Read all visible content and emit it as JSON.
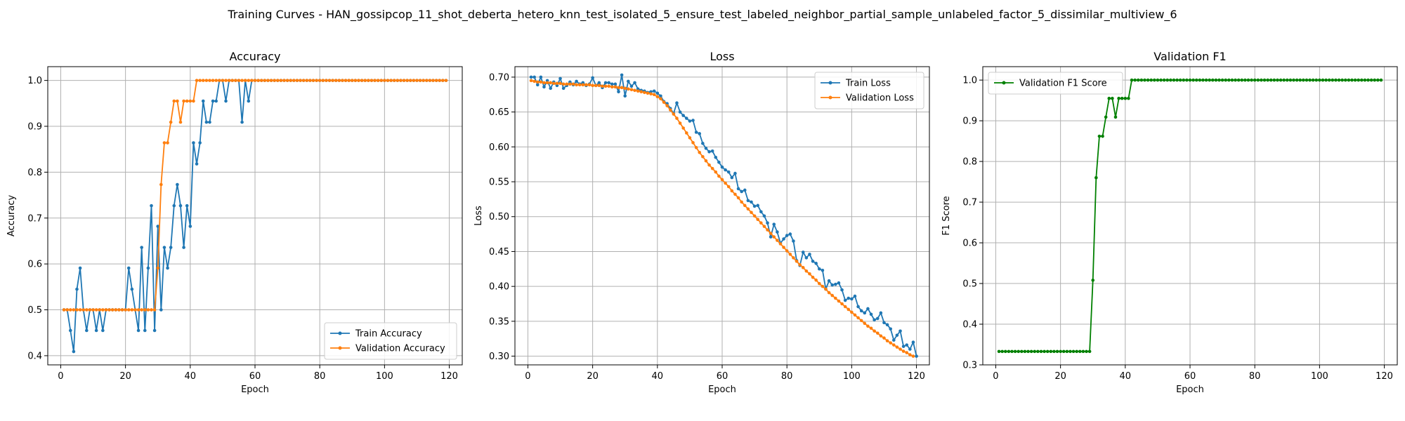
{
  "suptitle": "Training Curves - HAN_gossipcop_11_shot_deberta_hetero_knn_test_isolated_5_ensure_test_labeled_neighbor_partial_sample_unlabeled_factor_5_dissimilar_multiview_6",
  "colors": {
    "train": "#1f77b4",
    "val": "#ff7f0e",
    "f1": "#008000",
    "grid": "#b0b0b0"
  },
  "chart_data": [
    {
      "type": "line",
      "title": "Accuracy",
      "xlabel": "Epoch",
      "ylabel": "Accuracy",
      "xlim": [
        -4,
        124
      ],
      "ylim": [
        0.38,
        1.03
      ],
      "xticks": [
        0,
        20,
        40,
        60,
        80,
        100,
        120
      ],
      "yticks": [
        0.4,
        0.5,
        0.6,
        0.7,
        0.8,
        0.9,
        1.0
      ],
      "ytick_labels": [
        "0.4",
        "0.5",
        "0.6",
        "0.7",
        "0.8",
        "0.9",
        "1.0"
      ],
      "grid": true,
      "legend": "lower-right",
      "x_start": 1,
      "series": [
        {
          "name": "Train Accuracy",
          "color": "#1f77b4",
          "values": [
            0.5,
            0.5,
            0.455,
            0.409,
            0.545,
            0.591,
            0.5,
            0.455,
            0.5,
            0.5,
            0.455,
            0.5,
            0.455,
            0.5,
            0.5,
            0.5,
            0.5,
            0.5,
            0.5,
            0.5,
            0.591,
            0.545,
            0.5,
            0.455,
            0.636,
            0.455,
            0.591,
            0.727,
            0.455,
            0.682,
            0.5,
            0.636,
            0.591,
            0.636,
            0.727,
            0.773,
            0.727,
            0.636,
            0.727,
            0.682,
            0.864,
            0.818,
            0.864,
            0.955,
            0.909,
            0.909,
            0.955,
            0.955,
            1.0,
            1.0,
            0.955,
            1.0,
            1.0,
            1.0,
            1.0,
            0.909,
            1.0,
            0.955,
            1.0,
            1.0,
            1.0,
            1.0,
            1.0,
            1.0,
            1.0,
            1.0,
            1.0,
            1.0,
            1.0,
            1.0,
            1.0,
            1.0,
            1.0,
            1.0,
            1.0,
            1.0,
            1.0,
            1.0,
            1.0,
            1.0,
            1.0,
            1.0,
            1.0,
            1.0,
            1.0,
            1.0,
            1.0,
            1.0,
            1.0,
            1.0,
            1.0,
            1.0,
            1.0,
            1.0,
            1.0,
            1.0,
            1.0,
            1.0,
            1.0,
            1.0,
            1.0,
            1.0,
            1.0,
            1.0,
            1.0,
            1.0,
            1.0,
            1.0,
            1.0,
            1.0,
            1.0,
            1.0,
            1.0,
            1.0,
            1.0,
            1.0,
            1.0,
            1.0,
            1.0
          ]
        },
        {
          "name": "Validation Accuracy",
          "color": "#ff7f0e",
          "values": [
            0.5,
            0.5,
            0.5,
            0.5,
            0.5,
            0.5,
            0.5,
            0.5,
            0.5,
            0.5,
            0.5,
            0.5,
            0.5,
            0.5,
            0.5,
            0.5,
            0.5,
            0.5,
            0.5,
            0.5,
            0.5,
            0.5,
            0.5,
            0.5,
            0.5,
            0.5,
            0.5,
            0.5,
            0.5,
            0.591,
            0.773,
            0.864,
            0.864,
            0.909,
            0.955,
            0.955,
            0.909,
            0.955,
            0.955,
            0.955,
            0.955,
            1.0,
            1.0,
            1.0,
            1.0,
            1.0,
            1.0,
            1.0,
            1.0,
            1.0,
            1.0,
            1.0,
            1.0,
            1.0,
            1.0,
            1.0,
            1.0,
            1.0,
            1.0,
            1.0,
            1.0,
            1.0,
            1.0,
            1.0,
            1.0,
            1.0,
            1.0,
            1.0,
            1.0,
            1.0,
            1.0,
            1.0,
            1.0,
            1.0,
            1.0,
            1.0,
            1.0,
            1.0,
            1.0,
            1.0,
            1.0,
            1.0,
            1.0,
            1.0,
            1.0,
            1.0,
            1.0,
            1.0,
            1.0,
            1.0,
            1.0,
            1.0,
            1.0,
            1.0,
            1.0,
            1.0,
            1.0,
            1.0,
            1.0,
            1.0,
            1.0,
            1.0,
            1.0,
            1.0,
            1.0,
            1.0,
            1.0,
            1.0,
            1.0,
            1.0,
            1.0,
            1.0,
            1.0,
            1.0,
            1.0,
            1.0,
            1.0,
            1.0,
            1.0
          ]
        }
      ]
    },
    {
      "type": "line",
      "title": "Loss",
      "xlabel": "Epoch",
      "ylabel": "Loss",
      "xlim": [
        -4,
        124
      ],
      "ylim": [
        0.2875,
        0.715
      ],
      "xticks": [
        0,
        20,
        40,
        60,
        80,
        100,
        120
      ],
      "yticks": [
        0.3,
        0.35,
        0.4,
        0.45,
        0.5,
        0.55,
        0.6,
        0.65,
        0.7
      ],
      "ytick_labels": [
        "0.30",
        "0.35",
        "0.40",
        "0.45",
        "0.50",
        "0.55",
        "0.60",
        "0.65",
        "0.70"
      ],
      "grid": true,
      "legend": "top-right",
      "x_start": 1,
      "series": [
        {
          "name": "Train Loss",
          "color": "#1f77b4",
          "values": [
            0.7,
            0.7,
            0.689,
            0.7,
            0.686,
            0.695,
            0.684,
            0.693,
            0.688,
            0.698,
            0.684,
            0.688,
            0.693,
            0.689,
            0.694,
            0.69,
            0.692,
            0.688,
            0.69,
            0.699,
            0.688,
            0.692,
            0.685,
            0.692,
            0.692,
            0.69,
            0.69,
            0.679,
            0.703,
            0.673,
            0.694,
            0.687,
            0.692,
            0.683,
            0.681,
            0.68,
            0.678,
            0.679,
            0.68,
            0.677,
            0.673,
            0.665,
            0.662,
            0.655,
            0.648,
            0.663,
            0.65,
            0.645,
            0.641,
            0.637,
            0.638,
            0.621,
            0.619,
            0.605,
            0.598,
            0.593,
            0.594,
            0.585,
            0.578,
            0.571,
            0.567,
            0.564,
            0.556,
            0.562,
            0.54,
            0.536,
            0.538,
            0.523,
            0.521,
            0.515,
            0.516,
            0.507,
            0.501,
            0.491,
            0.471,
            0.489,
            0.478,
            0.462,
            0.468,
            0.473,
            0.475,
            0.465,
            0.437,
            0.43,
            0.449,
            0.441,
            0.446,
            0.436,
            0.433,
            0.425,
            0.423,
            0.396,
            0.408,
            0.402,
            0.403,
            0.405,
            0.395,
            0.38,
            0.383,
            0.382,
            0.386,
            0.371,
            0.365,
            0.362,
            0.368,
            0.36,
            0.352,
            0.354,
            0.362,
            0.348,
            0.345,
            0.339,
            0.323,
            0.33,
            0.336,
            0.314,
            0.316,
            0.31,
            0.32,
            0.3
          ]
        },
        {
          "name": "Validation Loss",
          "color": "#ff7f0e",
          "values": [
            0.695,
            0.694,
            0.693,
            0.693,
            0.692,
            0.692,
            0.692,
            0.691,
            0.691,
            0.691,
            0.69,
            0.69,
            0.69,
            0.69,
            0.689,
            0.689,
            0.689,
            0.689,
            0.689,
            0.688,
            0.688,
            0.688,
            0.687,
            0.687,
            0.687,
            0.686,
            0.686,
            0.685,
            0.685,
            0.684,
            0.683,
            0.682,
            0.681,
            0.68,
            0.679,
            0.678,
            0.677,
            0.676,
            0.675,
            0.672,
            0.669,
            0.664,
            0.659,
            0.653,
            0.647,
            0.641,
            0.634,
            0.627,
            0.62,
            0.613,
            0.606,
            0.599,
            0.592,
            0.586,
            0.58,
            0.574,
            0.569,
            0.564,
            0.558,
            0.553,
            0.548,
            0.543,
            0.537,
            0.532,
            0.527,
            0.521,
            0.516,
            0.511,
            0.506,
            0.501,
            0.496,
            0.491,
            0.486,
            0.481,
            0.476,
            0.471,
            0.466,
            0.461,
            0.456,
            0.451,
            0.446,
            0.441,
            0.436,
            0.431,
            0.427,
            0.422,
            0.418,
            0.413,
            0.409,
            0.404,
            0.4,
            0.396,
            0.391,
            0.387,
            0.383,
            0.379,
            0.375,
            0.371,
            0.367,
            0.363,
            0.359,
            0.355,
            0.351,
            0.347,
            0.343,
            0.34,
            0.336,
            0.333,
            0.329,
            0.326,
            0.322,
            0.319,
            0.316,
            0.313,
            0.31,
            0.307,
            0.305,
            0.302,
            0.3
          ]
        }
      ]
    },
    {
      "type": "line",
      "title": "Validation F1",
      "xlabel": "Epoch",
      "ylabel": "F1 Score",
      "xlim": [
        -4,
        124
      ],
      "ylim": [
        0.3,
        1.033
      ],
      "xticks": [
        0,
        20,
        40,
        60,
        80,
        100,
        120
      ],
      "yticks": [
        0.3,
        0.4,
        0.5,
        0.6,
        0.7,
        0.8,
        0.9,
        1.0
      ],
      "ytick_labels": [
        "0.3",
        "0.4",
        "0.5",
        "0.6",
        "0.7",
        "0.8",
        "0.9",
        "1.0"
      ],
      "grid": true,
      "legend": "top-left",
      "x_start": 1,
      "series": [
        {
          "name": "Validation F1 Score",
          "color": "#008000",
          "values": [
            0.333,
            0.333,
            0.333,
            0.333,
            0.333,
            0.333,
            0.333,
            0.333,
            0.333,
            0.333,
            0.333,
            0.333,
            0.333,
            0.333,
            0.333,
            0.333,
            0.333,
            0.333,
            0.333,
            0.333,
            0.333,
            0.333,
            0.333,
            0.333,
            0.333,
            0.333,
            0.333,
            0.333,
            0.333,
            0.508,
            0.76,
            0.862,
            0.862,
            0.909,
            0.955,
            0.955,
            0.909,
            0.955,
            0.955,
            0.955,
            0.955,
            1.0,
            1.0,
            1.0,
            1.0,
            1.0,
            1.0,
            1.0,
            1.0,
            1.0,
            1.0,
            1.0,
            1.0,
            1.0,
            1.0,
            1.0,
            1.0,
            1.0,
            1.0,
            1.0,
            1.0,
            1.0,
            1.0,
            1.0,
            1.0,
            1.0,
            1.0,
            1.0,
            1.0,
            1.0,
            1.0,
            1.0,
            1.0,
            1.0,
            1.0,
            1.0,
            1.0,
            1.0,
            1.0,
            1.0,
            1.0,
            1.0,
            1.0,
            1.0,
            1.0,
            1.0,
            1.0,
            1.0,
            1.0,
            1.0,
            1.0,
            1.0,
            1.0,
            1.0,
            1.0,
            1.0,
            1.0,
            1.0,
            1.0,
            1.0,
            1.0,
            1.0,
            1.0,
            1.0,
            1.0,
            1.0,
            1.0,
            1.0,
            1.0,
            1.0,
            1.0,
            1.0,
            1.0,
            1.0,
            1.0,
            1.0,
            1.0,
            1.0,
            1.0
          ]
        }
      ]
    }
  ]
}
